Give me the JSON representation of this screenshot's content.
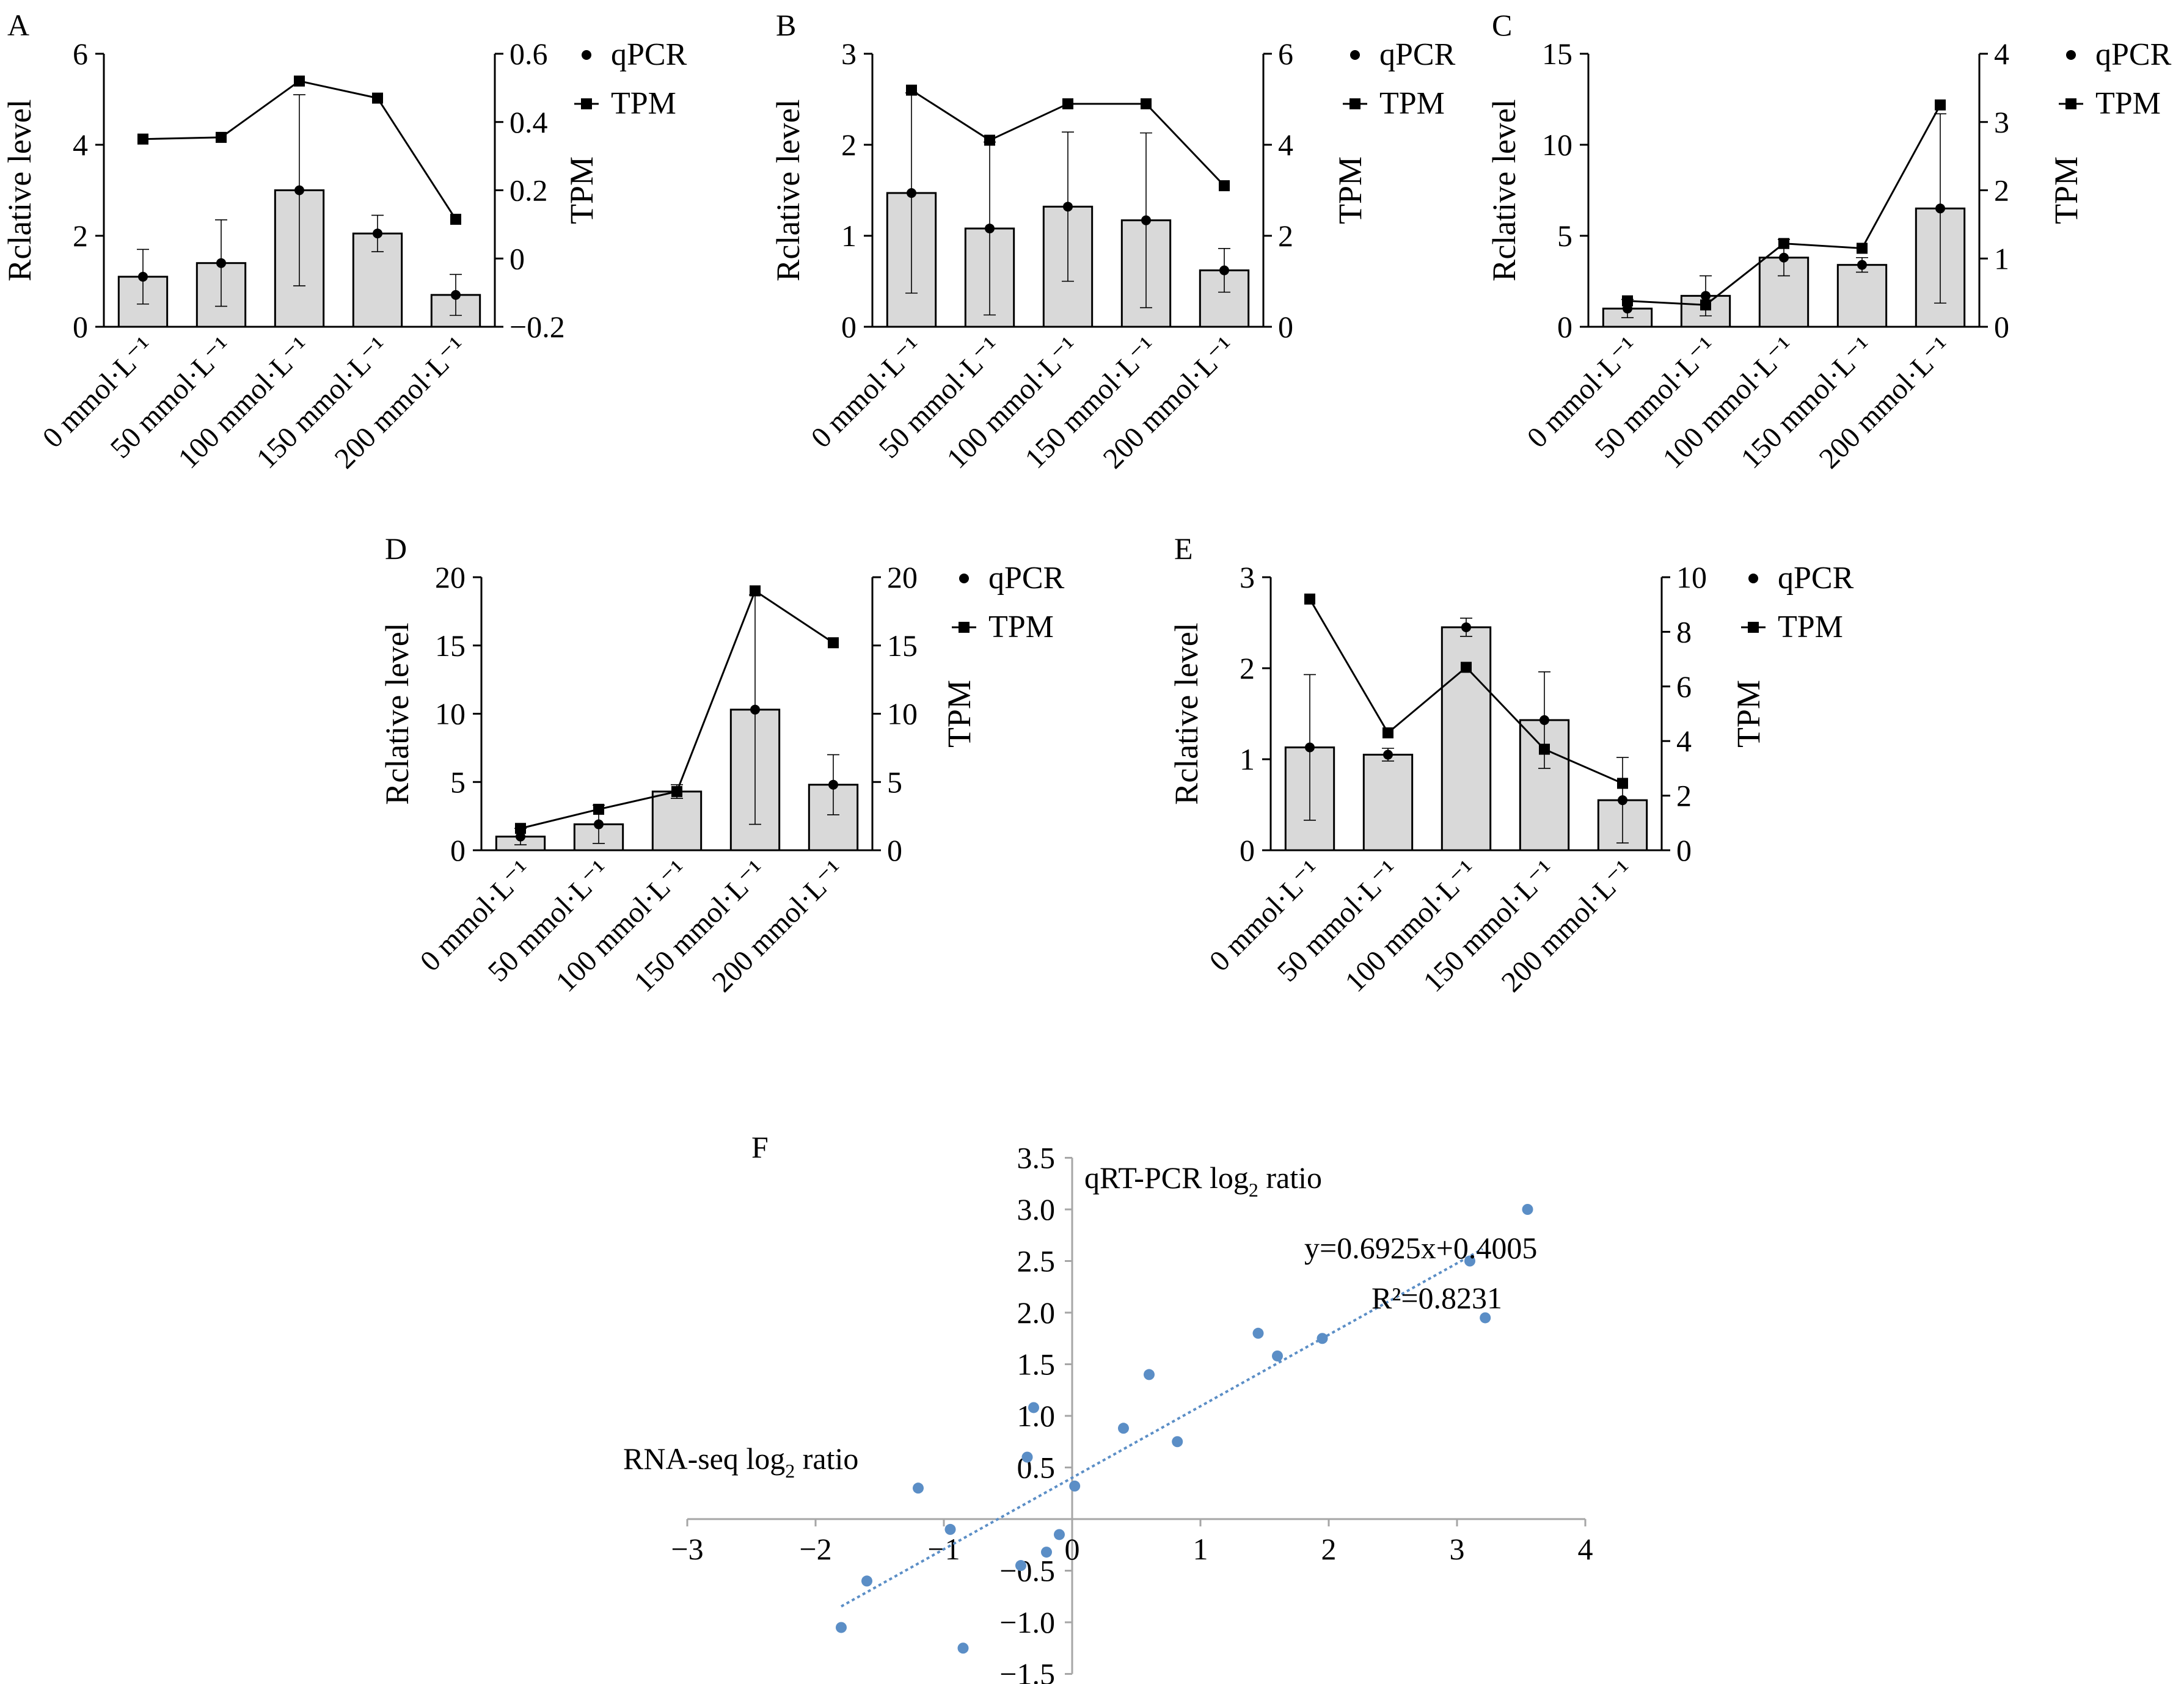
{
  "figure": {
    "legend_qpcr": "qPCR",
    "legend_tpm": "TPM",
    "colors": {
      "bar_fill": "#d9d9d9",
      "line": "#000000",
      "scatter_point": "#5b8ec6",
      "trend_line": "#5b8ec6",
      "axis_f": "#a6a6a6"
    }
  },
  "chart_data": [
    {
      "type": "bar",
      "panel": "A",
      "categories": [
        "0 mmol·L⁻¹",
        "50 mmol·L⁻¹",
        "100 mmol·L⁻¹",
        "150 mmol·L⁻¹",
        "200 mmol·L⁻¹"
      ],
      "ylabel": "Rclative level",
      "y2label": "TPM",
      "ylim": [
        0,
        6
      ],
      "yticks": [
        "0",
        "2",
        "4",
        "6"
      ],
      "y2lim": [
        -0.2,
        0.6
      ],
      "y2ticks": [
        "−0.2",
        "0",
        "0.2",
        "0.4",
        "0.6"
      ],
      "series": [
        {
          "name": "qPCR",
          "axis": "left",
          "values": [
            1.1,
            1.4,
            3.0,
            2.05,
            0.7
          ],
          "errors": [
            0.6,
            0.95,
            2.1,
            0.4,
            0.45
          ]
        },
        {
          "name": "TPM",
          "axis": "right",
          "values": [
            0.35,
            0.355,
            0.52,
            0.47,
            0.115
          ]
        }
      ]
    },
    {
      "type": "bar",
      "panel": "B",
      "categories": [
        "0 mmol·L⁻¹",
        "50 mmol·L⁻¹",
        "100 mmol·L⁻¹",
        "150 mmol·L⁻¹",
        "200 mmol·L⁻¹"
      ],
      "ylabel": "Rclative level",
      "y2label": "TPM",
      "ylim": [
        0,
        3
      ],
      "yticks": [
        "0",
        "1",
        "2",
        "3"
      ],
      "y2lim": [
        0,
        6
      ],
      "y2ticks": [
        "0",
        "2",
        "4",
        "6"
      ],
      "series": [
        {
          "name": "qPCR",
          "axis": "left",
          "values": [
            1.47,
            1.08,
            1.32,
            1.17,
            0.62
          ],
          "errors": [
            1.1,
            0.95,
            0.82,
            0.96,
            0.24
          ]
        },
        {
          "name": "TPM",
          "axis": "right",
          "values": [
            5.2,
            4.1,
            4.9,
            4.9,
            3.1
          ]
        }
      ]
    },
    {
      "type": "bar",
      "panel": "C",
      "categories": [
        "0 mmol·L⁻¹",
        "50 mmol·L⁻¹",
        "100 mmol·L⁻¹",
        "150 mmol·L⁻¹",
        "200 mmol·L⁻¹"
      ],
      "ylabel": "Rclative level",
      "y2label": "TPM",
      "ylim": [
        0,
        15
      ],
      "yticks": [
        "0",
        "5",
        "10",
        "15"
      ],
      "y2lim": [
        0,
        4
      ],
      "y2ticks": [
        "0",
        "1",
        "2",
        "3",
        "4"
      ],
      "series": [
        {
          "name": "qPCR",
          "axis": "left",
          "values": [
            1.0,
            1.7,
            3.8,
            3.4,
            6.5
          ],
          "errors": [
            0.5,
            1.1,
            1.0,
            0.4,
            5.2
          ]
        },
        {
          "name": "TPM",
          "axis": "right",
          "values": [
            0.38,
            0.32,
            1.22,
            1.15,
            3.25
          ]
        }
      ]
    },
    {
      "type": "bar",
      "panel": "D",
      "categories": [
        "0 mmol·L⁻¹",
        "50 mmol·L⁻¹",
        "100 mmol·L⁻¹",
        "150 mmol·L⁻¹",
        "200 mmol·L⁻¹"
      ],
      "ylabel": "Rclative level",
      "y2label": "TPM",
      "ylim": [
        0,
        20
      ],
      "yticks": [
        "0",
        "5",
        "10",
        "15",
        "20"
      ],
      "y2lim": [
        0,
        20
      ],
      "y2ticks": [
        "0",
        "5",
        "10",
        "15",
        "20"
      ],
      "series": [
        {
          "name": "qPCR",
          "axis": "left",
          "values": [
            1.0,
            1.9,
            4.3,
            10.3,
            4.8
          ],
          "errors": [
            0.6,
            1.4,
            0.5,
            8.4,
            2.2
          ]
        },
        {
          "name": "TPM",
          "axis": "right",
          "values": [
            1.6,
            3.0,
            4.3,
            19.0,
            15.2
          ]
        }
      ]
    },
    {
      "type": "bar",
      "panel": "E",
      "categories": [
        "0 mmol·L⁻¹",
        "50 mmol·L⁻¹",
        "100 mmol·L⁻¹",
        "150 mmol·L⁻¹",
        "200 mmol·L⁻¹"
      ],
      "ylabel": "Rclative level",
      "y2label": "TPM",
      "ylim": [
        0,
        3
      ],
      "yticks": [
        "0",
        "1",
        "2",
        "3"
      ],
      "y2lim": [
        0,
        10
      ],
      "y2ticks": [
        "0",
        "2",
        "4",
        "6",
        "8",
        "10"
      ],
      "series": [
        {
          "name": "qPCR",
          "axis": "left",
          "values": [
            1.13,
            1.05,
            2.45,
            1.43,
            0.55
          ],
          "errors": [
            0.8,
            0.07,
            0.1,
            0.53,
            0.47
          ]
        },
        {
          "name": "TPM",
          "axis": "right",
          "values": [
            9.2,
            4.3,
            6.7,
            3.7,
            2.45
          ]
        }
      ]
    },
    {
      "type": "scatter",
      "panel": "F",
      "xlabel_main": "RNA-seq log",
      "xlabel_sub": "2",
      "xlabel_tail": " ratio",
      "ylabel_main": "qRT-PCR log",
      "ylabel_sub": "2",
      "ylabel_tail": " ratio",
      "equation": "y=0.6925x+0.4005",
      "r2": "R²=0.8231",
      "xlim": [
        -3,
        4
      ],
      "ylim": [
        -1.5,
        3.5
      ],
      "xticks": [
        "−3",
        "−2",
        "−1",
        "0",
        "1",
        "2",
        "3",
        "4"
      ],
      "yticks": [
        "−1.5",
        "−1.0",
        "−0.5",
        "0",
        "0.5",
        "1.0",
        "1.5",
        "2.0",
        "2.5",
        "3.0",
        "3.5"
      ],
      "trendline": {
        "slope": 0.6925,
        "intercept": 0.4005,
        "x_from": -1.8,
        "x_to": 3.2
      },
      "x": [
        -1.8,
        -1.6,
        -1.2,
        -0.95,
        -0.85,
        -0.4,
        -0.35,
        -0.3,
        -0.2,
        -0.1,
        0.02,
        0.4,
        0.6,
        0.82,
        1.45,
        1.6,
        1.95,
        3.1,
        3.22,
        3.55
      ],
      "y": [
        -1.05,
        -0.6,
        0.3,
        -0.1,
        -1.25,
        -0.45,
        0.6,
        1.08,
        -0.32,
        -0.15,
        0.32,
        0.88,
        1.4,
        0.75,
        1.8,
        1.58,
        1.75,
        2.5,
        1.95,
        3.0
      ]
    }
  ]
}
